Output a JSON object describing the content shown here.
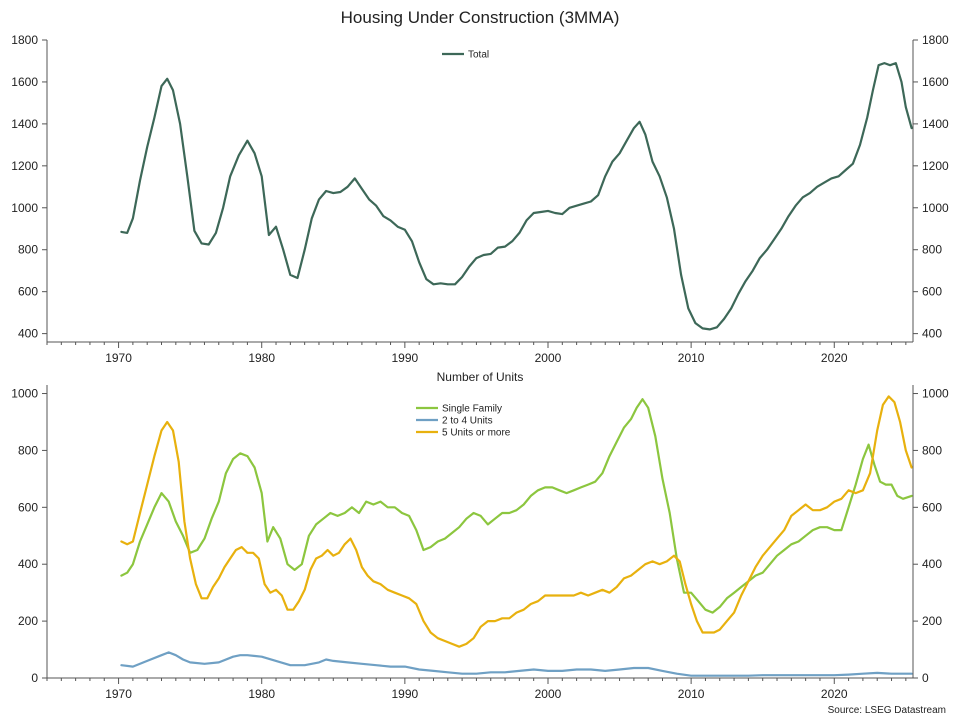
{
  "title": "Housing Under Construction (3MMA)",
  "source": "Source: LSEG Datastream",
  "chart_data": [
    {
      "type": "line",
      "title": "Housing Under Construction (3MMA)",
      "xlabel": "",
      "ylabel": "",
      "xlim": [
        1965,
        2025.5
      ],
      "ylim": [
        360,
        1800
      ],
      "yticks": [
        400,
        600,
        800,
        1000,
        1200,
        1400,
        1600,
        1800
      ],
      "xticks": [
        1970,
        1980,
        1990,
        2000,
        2010,
        2020
      ],
      "y_axis_both_sides": true,
      "legend": "top-center",
      "series": [
        {
          "name": "Total",
          "color": "#3d6858",
          "x": [
            1970.2,
            1970.6,
            1971.0,
            1971.5,
            1972.0,
            1972.5,
            1973.0,
            1973.4,
            1973.8,
            1974.3,
            1974.8,
            1975.3,
            1975.8,
            1976.3,
            1976.8,
            1977.3,
            1977.8,
            1978.4,
            1979.0,
            1979.5,
            1980.0,
            1980.5,
            1981.0,
            1981.5,
            1982.0,
            1982.5,
            1983.0,
            1983.5,
            1984.0,
            1984.5,
            1985.0,
            1985.5,
            1986.0,
            1986.5,
            1987.0,
            1987.5,
            1988.0,
            1988.5,
            1989.0,
            1989.5,
            1990.0,
            1990.5,
            1991.0,
            1991.5,
            1992.0,
            1992.5,
            1993.0,
            1993.5,
            1994.0,
            1994.5,
            1995.0,
            1995.5,
            1996.0,
            1996.5,
            1997.0,
            1997.5,
            1998.0,
            1998.5,
            1999.0,
            1999.5,
            2000.0,
            2000.5,
            2001.0,
            2001.5,
            2002.0,
            2002.5,
            2003.0,
            2003.5,
            2004.0,
            2004.5,
            2005.0,
            2005.5,
            2006.0,
            2006.4,
            2006.8,
            2007.3,
            2007.8,
            2008.3,
            2008.8,
            2009.3,
            2009.8,
            2010.3,
            2010.8,
            2011.3,
            2011.8,
            2012.3,
            2012.8,
            2013.3,
            2013.8,
            2014.3,
            2014.8,
            2015.3,
            2015.8,
            2016.3,
            2016.8,
            2017.3,
            2017.8,
            2018.3,
            2018.8,
            2019.3,
            2019.8,
            2020.3,
            2020.8,
            2021.3,
            2021.8,
            2022.3,
            2022.7,
            2023.1,
            2023.5,
            2023.9,
            2024.3,
            2024.7,
            2025.0,
            2025.4
          ],
          "y": [
            885,
            880,
            950,
            1130,
            1290,
            1430,
            1580,
            1615,
            1560,
            1400,
            1150,
            890,
            830,
            825,
            880,
            1000,
            1150,
            1250,
            1320,
            1260,
            1150,
            870,
            910,
            800,
            680,
            665,
            800,
            950,
            1040,
            1080,
            1070,
            1075,
            1100,
            1140,
            1090,
            1040,
            1010,
            960,
            940,
            910,
            895,
            840,
            740,
            660,
            635,
            640,
            635,
            635,
            670,
            720,
            760,
            775,
            780,
            810,
            815,
            840,
            880,
            940,
            975,
            980,
            985,
            975,
            970,
            1000,
            1010,
            1020,
            1030,
            1060,
            1150,
            1220,
            1260,
            1320,
            1380,
            1410,
            1350,
            1220,
            1150,
            1050,
            900,
            680,
            520,
            450,
            425,
            420,
            430,
            470,
            520,
            590,
            650,
            700,
            760,
            800,
            850,
            900,
            960,
            1010,
            1050,
            1070,
            1100,
            1120,
            1140,
            1150,
            1180,
            1210,
            1300,
            1430,
            1560,
            1680,
            1690,
            1680,
            1690,
            1600,
            1480,
            1380
          ]
        }
      ]
    },
    {
      "type": "line",
      "title": "Number of Units",
      "xlabel": "",
      "ylabel": "",
      "xlim": [
        1965,
        2025.5
      ],
      "ylim": [
        0,
        1030
      ],
      "yticks": [
        0,
        200,
        400,
        600,
        800,
        1000
      ],
      "xticks": [
        1970,
        1980,
        1990,
        2000,
        2010,
        2020
      ],
      "y_axis_both_sides": true,
      "legend": "top-center",
      "series": [
        {
          "name": "Single Family",
          "color": "#8cc63f",
          "x": [
            1970.2,
            1970.6,
            1971.0,
            1971.5,
            1972.0,
            1972.5,
            1973.0,
            1973.5,
            1974.0,
            1974.5,
            1975.0,
            1975.5,
            1976.0,
            1976.5,
            1977.0,
            1977.5,
            1978.0,
            1978.5,
            1979.0,
            1979.5,
            1980.0,
            1980.4,
            1980.8,
            1981.3,
            1981.8,
            1982.3,
            1982.8,
            1983.3,
            1983.8,
            1984.3,
            1984.8,
            1985.3,
            1985.8,
            1986.3,
            1986.8,
            1987.3,
            1987.8,
            1988.3,
            1988.8,
            1989.3,
            1989.8,
            1990.3,
            1990.8,
            1991.3,
            1991.8,
            1992.3,
            1992.8,
            1993.3,
            1993.8,
            1994.3,
            1994.8,
            1995.3,
            1995.8,
            1996.3,
            1996.8,
            1997.3,
            1997.8,
            1998.3,
            1998.8,
            1999.3,
            1999.8,
            2000.3,
            2000.8,
            2001.3,
            2001.8,
            2002.3,
            2002.8,
            2003.3,
            2003.8,
            2004.3,
            2004.8,
            2005.3,
            2005.8,
            2006.2,
            2006.6,
            2007.0,
            2007.5,
            2008.0,
            2008.5,
            2009.0,
            2009.5,
            2010.0,
            2010.5,
            2011.0,
            2011.5,
            2012.0,
            2012.5,
            2013.0,
            2013.5,
            2014.0,
            2014.5,
            2015.0,
            2015.5,
            2016.0,
            2016.5,
            2017.0,
            2017.5,
            2018.0,
            2018.5,
            2019.0,
            2019.5,
            2020.0,
            2020.5,
            2021.0,
            2021.5,
            2022.0,
            2022.4,
            2022.8,
            2023.2,
            2023.6,
            2024.0,
            2024.4,
            2024.8,
            2025.4
          ],
          "y": [
            360,
            370,
            400,
            480,
            540,
            600,
            650,
            620,
            550,
            500,
            440,
            450,
            490,
            560,
            620,
            720,
            770,
            790,
            780,
            740,
            650,
            480,
            530,
            490,
            400,
            380,
            400,
            500,
            540,
            560,
            580,
            570,
            580,
            600,
            580,
            620,
            610,
            620,
            600,
            600,
            580,
            570,
            520,
            450,
            460,
            480,
            490,
            510,
            530,
            560,
            580,
            570,
            540,
            560,
            580,
            580,
            590,
            610,
            640,
            660,
            670,
            670,
            660,
            650,
            660,
            670,
            680,
            690,
            720,
            780,
            830,
            880,
            910,
            950,
            980,
            950,
            850,
            700,
            580,
            420,
            300,
            300,
            270,
            240,
            230,
            250,
            280,
            300,
            320,
            340,
            360,
            370,
            400,
            430,
            450,
            470,
            480,
            500,
            520,
            530,
            530,
            520,
            520,
            600,
            680,
            770,
            820,
            750,
            690,
            680,
            680,
            640,
            630,
            640
          ]
        },
        {
          "name": "2 to 4 Units",
          "color": "#6fa0c4",
          "x": [
            1970.2,
            1971.0,
            1972.0,
            1973.0,
            1973.5,
            1974.0,
            1974.5,
            1975.0,
            1976.0,
            1977.0,
            1978.0,
            1978.5,
            1979.0,
            1980.0,
            1981.0,
            1982.0,
            1983.0,
            1984.0,
            1984.5,
            1985.0,
            1986.0,
            1987.0,
            1988.0,
            1989.0,
            1990.0,
            1991.0,
            1992.0,
            1993.0,
            1994.0,
            1995.0,
            1996.0,
            1997.0,
            1998.0,
            1999.0,
            2000.0,
            2001.0,
            2002.0,
            2003.0,
            2004.0,
            2005.0,
            2006.0,
            2007.0,
            2008.0,
            2009.0,
            2010.0,
            2011.0,
            2012.0,
            2013.0,
            2014.0,
            2015.0,
            2016.0,
            2017.0,
            2018.0,
            2019.0,
            2020.0,
            2021.0,
            2022.0,
            2023.0,
            2024.0,
            2025.4
          ],
          "y": [
            45,
            40,
            60,
            80,
            90,
            80,
            65,
            55,
            50,
            55,
            75,
            80,
            80,
            75,
            60,
            45,
            45,
            55,
            65,
            60,
            55,
            50,
            45,
            40,
            40,
            30,
            25,
            20,
            15,
            15,
            20,
            20,
            25,
            30,
            25,
            25,
            30,
            30,
            25,
            30,
            35,
            35,
            25,
            15,
            8,
            8,
            8,
            8,
            8,
            10,
            10,
            10,
            10,
            10,
            10,
            12,
            15,
            18,
            15,
            15
          ]
        },
        {
          "name": "5 Units or more",
          "color": "#e8b10e",
          "x": [
            1970.2,
            1970.6,
            1971.0,
            1971.5,
            1972.0,
            1972.5,
            1973.0,
            1973.4,
            1973.8,
            1974.2,
            1974.6,
            1975.0,
            1975.4,
            1975.8,
            1976.2,
            1976.6,
            1977.0,
            1977.4,
            1977.8,
            1978.2,
            1978.6,
            1979.0,
            1979.4,
            1979.8,
            1980.2,
            1980.6,
            1981.0,
            1981.4,
            1981.8,
            1982.2,
            1982.6,
            1983.0,
            1983.4,
            1983.8,
            1984.2,
            1984.6,
            1985.0,
            1985.4,
            1985.8,
            1986.2,
            1986.6,
            1987.0,
            1987.4,
            1987.8,
            1988.3,
            1988.8,
            1989.3,
            1989.8,
            1990.3,
            1990.8,
            1991.3,
            1991.8,
            1992.3,
            1992.8,
            1993.3,
            1993.8,
            1994.3,
            1994.8,
            1995.3,
            1995.8,
            1996.3,
            1996.8,
            1997.3,
            1997.8,
            1998.3,
            1998.8,
            1999.3,
            1999.8,
            2000.3,
            2000.8,
            2001.3,
            2001.8,
            2002.3,
            2002.8,
            2003.3,
            2003.8,
            2004.3,
            2004.8,
            2005.3,
            2005.8,
            2006.3,
            2006.8,
            2007.3,
            2007.8,
            2008.3,
            2008.8,
            2009.2,
            2009.6,
            2010.0,
            2010.4,
            2010.8,
            2011.2,
            2011.6,
            2012.0,
            2012.5,
            2013.0,
            2013.5,
            2014.0,
            2014.5,
            2015.0,
            2015.5,
            2016.0,
            2016.5,
            2017.0,
            2017.5,
            2018.0,
            2018.5,
            2019.0,
            2019.5,
            2020.0,
            2020.5,
            2021.0,
            2021.5,
            2022.0,
            2022.5,
            2023.0,
            2023.4,
            2023.8,
            2024.2,
            2024.6,
            2025.0,
            2025.4
          ],
          "y": [
            480,
            470,
            480,
            580,
            680,
            780,
            870,
            900,
            870,
            760,
            550,
            420,
            330,
            280,
            280,
            320,
            350,
            390,
            420,
            450,
            460,
            440,
            440,
            420,
            330,
            300,
            310,
            290,
            240,
            240,
            270,
            310,
            380,
            420,
            430,
            450,
            430,
            440,
            470,
            490,
            450,
            390,
            360,
            340,
            330,
            310,
            300,
            290,
            280,
            260,
            200,
            160,
            140,
            130,
            120,
            110,
            120,
            140,
            180,
            200,
            200,
            210,
            210,
            230,
            240,
            260,
            270,
            290,
            290,
            290,
            290,
            290,
            300,
            290,
            300,
            310,
            300,
            320,
            350,
            360,
            380,
            400,
            410,
            400,
            410,
            430,
            410,
            330,
            260,
            200,
            160,
            160,
            160,
            170,
            200,
            230,
            290,
            340,
            390,
            430,
            460,
            490,
            520,
            570,
            590,
            610,
            590,
            590,
            600,
            620,
            630,
            660,
            650,
            660,
            720,
            870,
            960,
            990,
            970,
            900,
            800,
            740
          ]
        }
      ]
    }
  ]
}
